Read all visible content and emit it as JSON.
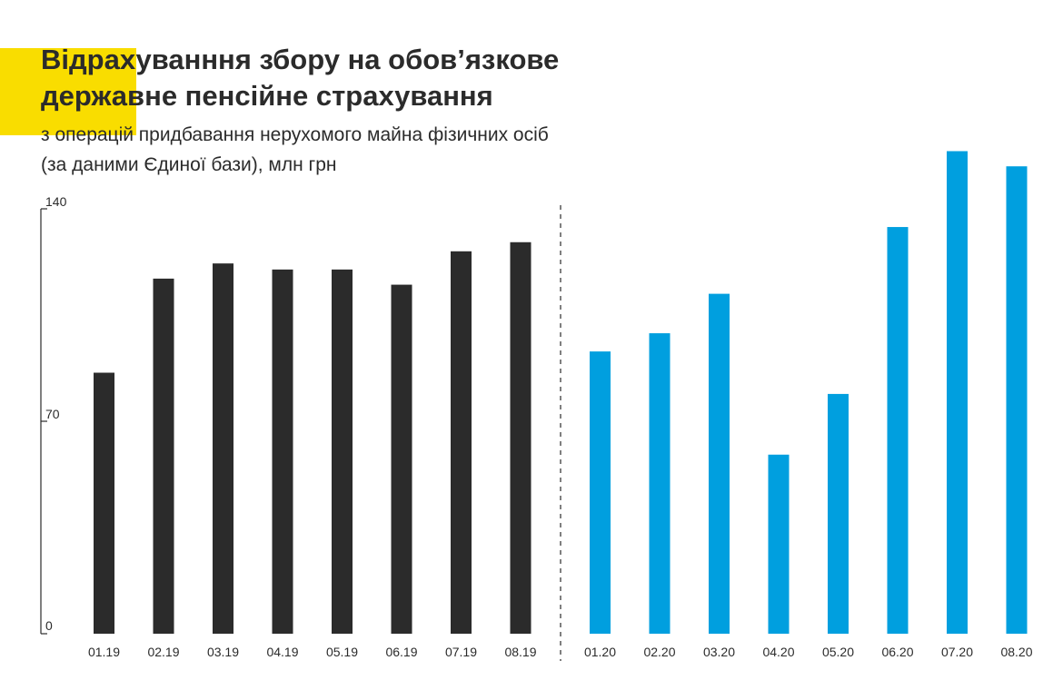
{
  "title": {
    "line1": "Відрахуванння збору на обов’язкове",
    "line2": "державне пенсійне страхування"
  },
  "subtitle": {
    "line1": "з операцій придбавання нерухомого майна фізичних осіб",
    "line2": "(за даними Єдиної бази), млн грн"
  },
  "colors": {
    "accent": "#f9dd00",
    "series_2019": "#2b2b2b",
    "series_2020": "#009fdf"
  },
  "chart_data": {
    "type": "bar",
    "title": "Відрахуванння збору на обов’язкове державне пенсійне страхування",
    "subtitle": "з операцій придбавання нерухомого майна фізичних осіб (за даними Єдиної бази), млн грн",
    "ylim": [
      0,
      140
    ],
    "yticks": [
      0,
      70,
      140
    ],
    "grid": false,
    "groups": [
      {
        "categories": [
          "01.19",
          "02.19",
          "03.19",
          "04.19",
          "05.19",
          "06.19",
          "07.19",
          "08.19"
        ],
        "values": [
          86,
          117,
          122,
          120,
          120,
          115,
          126,
          129
        ],
        "color": "#2b2b2b"
      },
      {
        "categories": [
          "01.20",
          "02.20",
          "03.20",
          "04.20",
          "05.20",
          "06.20",
          "07.20",
          "08.20"
        ],
        "values": [
          93,
          99,
          112,
          59,
          79,
          134,
          159,
          154
        ],
        "color": "#009fdf"
      }
    ]
  }
}
